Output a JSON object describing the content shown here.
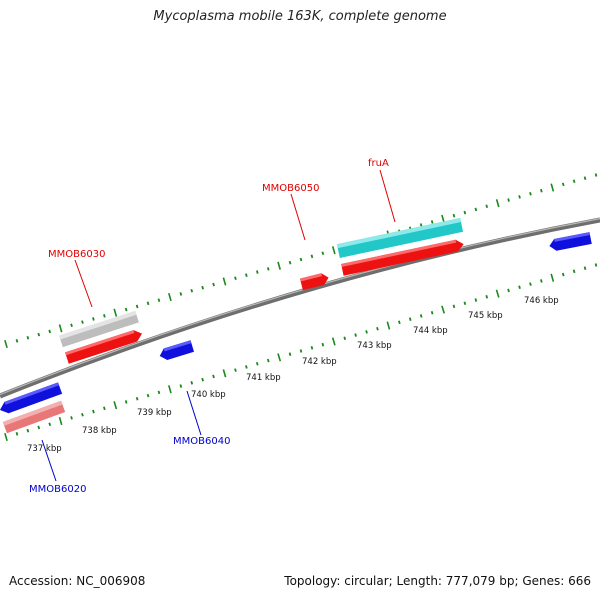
{
  "title": "Mycoplasma mobile 163K, complete genome",
  "footer": {
    "accession": "Accession: NC_006908",
    "summary": "Topology: circular; Length: 777,079 bp; Genes: 666"
  },
  "colors": {
    "backbone": "#8a8a8a",
    "tick": "#1a8a1a",
    "label_forward": "#e00000",
    "label_reverse": "#0000cc"
  },
  "scale_labels": [
    "737 kbp",
    "738 kbp",
    "739 kbp",
    "740 kbp",
    "741 kbp",
    "742 kbp",
    "743 kbp",
    "744 kbp",
    "745 kbp",
    "746 kbp"
  ],
  "genes": [
    {
      "name": "MMOB6020",
      "strand": "reverse",
      "color": "#e87878",
      "lane": "outer-reverse",
      "kind": "box",
      "labeled": true
    },
    {
      "name": "",
      "strand": "reverse",
      "color": "#1010dd",
      "lane": "inner-reverse",
      "kind": "arrow",
      "labeled": false
    },
    {
      "name": "MMOB6030",
      "strand": "forward",
      "color": "#bdbdbd",
      "lane": "outer-forward",
      "kind": "box",
      "labeled": true
    },
    {
      "name": "",
      "strand": "forward",
      "color": "#ee1111",
      "lane": "inner-forward",
      "kind": "arrow",
      "labeled": false
    },
    {
      "name": "MMOB6040",
      "strand": "reverse",
      "color": "#1010dd",
      "lane": "inner-reverse",
      "kind": "arrow",
      "labeled": true
    },
    {
      "name": "MMOB6050",
      "strand": "forward",
      "color": "#ee1111",
      "lane": "inner-forward",
      "kind": "arrow",
      "labeled": true
    },
    {
      "name": "fruA",
      "strand": "forward",
      "color": "#22c8c8",
      "lane": "outer-forward",
      "kind": "box",
      "labeled": true
    },
    {
      "name": "",
      "strand": "forward",
      "color": "#ee1111",
      "lane": "inner-forward",
      "kind": "arrow",
      "labeled": false
    },
    {
      "name": "",
      "strand": "reverse",
      "color": "#1010dd",
      "lane": "inner-reverse",
      "kind": "arrow",
      "labeled": false
    }
  ]
}
